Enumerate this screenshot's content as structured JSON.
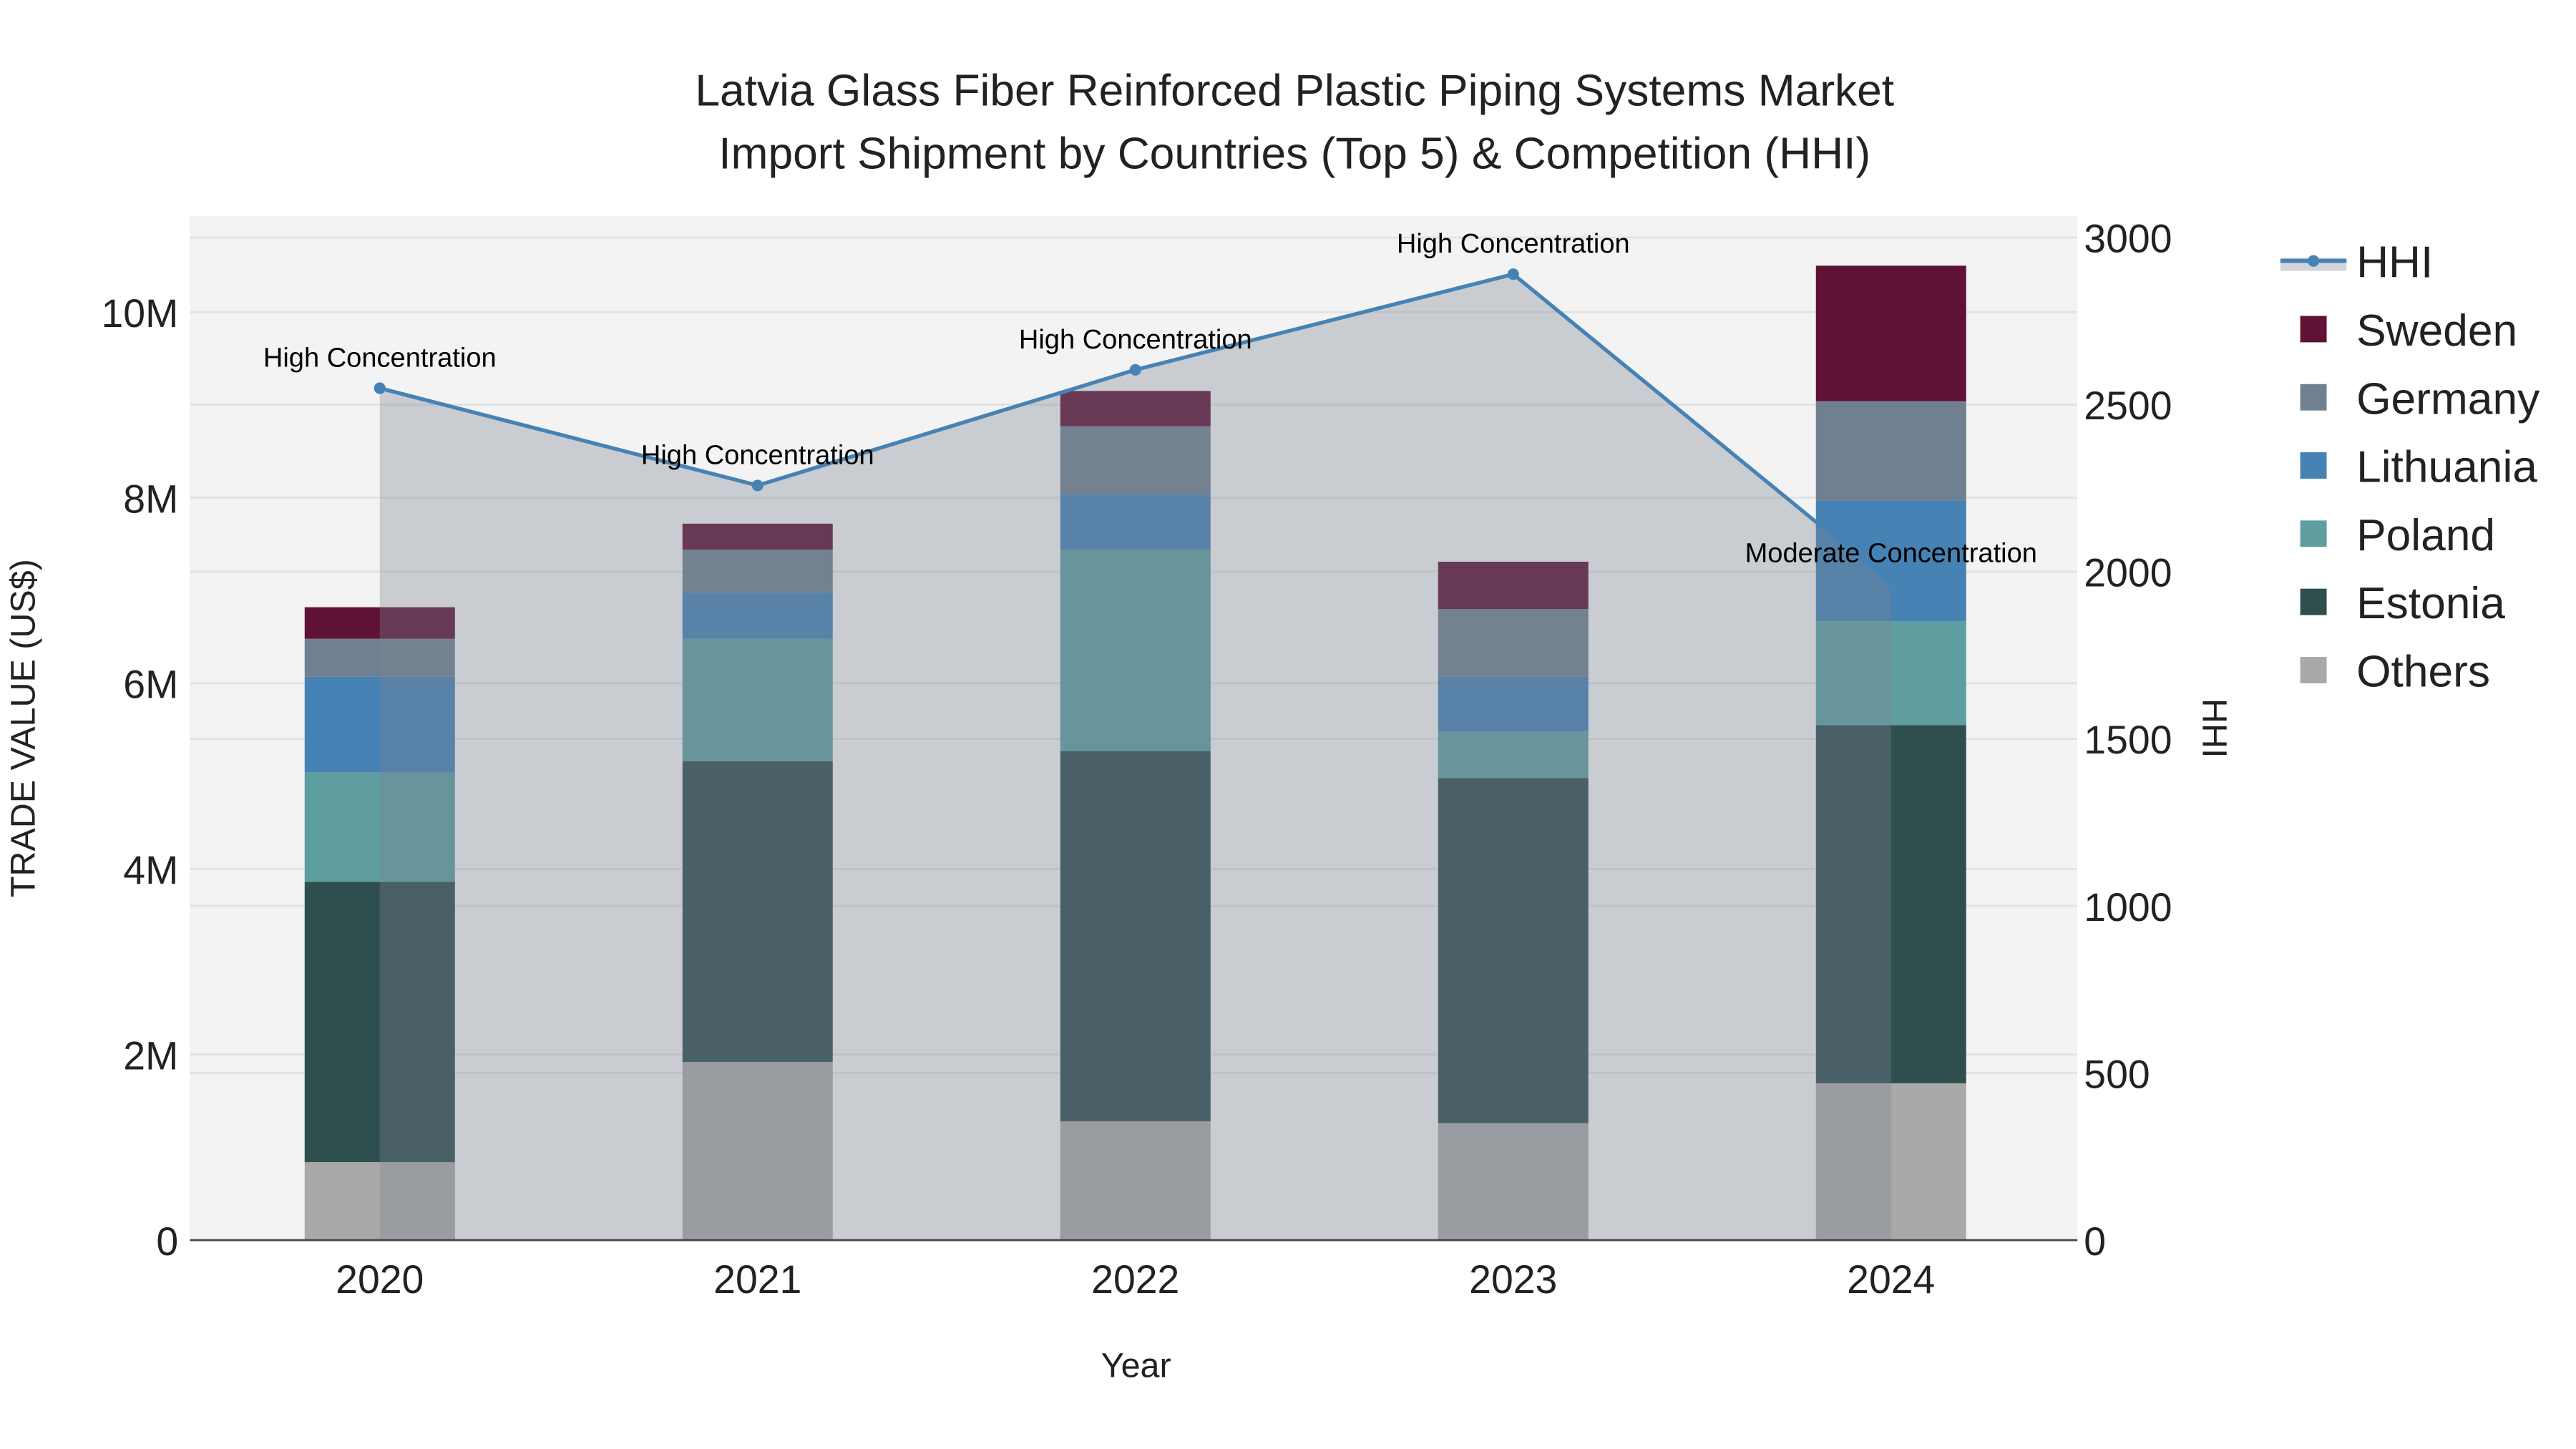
{
  "chart_data": {
    "type": "bar",
    "barmode": "stacked",
    "title": [
      "Latvia Glass Fiber Reinforced Plastic Piping Systems Market",
      "Import Shipment by Countries (Top 5) & Competition (HHI)"
    ],
    "xlabel": "Year",
    "ylabel": "TRADE VALUE (US$)",
    "y2label": "HHI",
    "categories": [
      "2020",
      "2021",
      "2022",
      "2023",
      "2024"
    ],
    "ylim": [
      0,
      11000000
    ],
    "y2lim": [
      0,
      3060
    ],
    "yticks": [
      {
        "v": 0,
        "label": "0"
      },
      {
        "v": 2000000,
        "label": "2M"
      },
      {
        "v": 4000000,
        "label": "4M"
      },
      {
        "v": 6000000,
        "label": "6M"
      },
      {
        "v": 8000000,
        "label": "8M"
      },
      {
        "v": 10000000,
        "label": "10M"
      }
    ],
    "y2ticks": [
      {
        "v": 0,
        "label": "0"
      },
      {
        "v": 500,
        "label": "500"
      },
      {
        "v": 1000,
        "label": "1000"
      },
      {
        "v": 1500,
        "label": "1500"
      },
      {
        "v": 2000,
        "label": "2000"
      },
      {
        "v": 2500,
        "label": "2500"
      },
      {
        "v": 3000,
        "label": "3000"
      }
    ],
    "grid": true,
    "legend_position": "right",
    "series": [
      {
        "name": "Others",
        "color": "#a9a9a9",
        "values": [
          840000,
          1920000,
          1280000,
          1260000,
          1690000
        ]
      },
      {
        "name": "Estonia",
        "color": "#2f4f4f",
        "values": [
          3020000,
          3240000,
          3990000,
          3720000,
          3860000
        ]
      },
      {
        "name": "Poland",
        "color": "#5f9ea0",
        "values": [
          1180000,
          1320000,
          2170000,
          500000,
          1120000
        ]
      },
      {
        "name": "Lithuania",
        "color": "#4682b4",
        "values": [
          1030000,
          500000,
          600000,
          590000,
          1300000
        ]
      },
      {
        "name": "Germany",
        "color": "#708090",
        "values": [
          410000,
          460000,
          730000,
          730000,
          1070000
        ]
      },
      {
        "name": "Sweden",
        "color": "#5f1234",
        "values": [
          340000,
          280000,
          380000,
          510000,
          1460000
        ]
      }
    ],
    "hhi": {
      "name": "HHI",
      "color": "#4682b4",
      "values": [
        2549,
        2258,
        2604,
        2890,
        1965
      ],
      "annotations": [
        "High Concentration",
        "High Concentration",
        "High Concentration",
        "High Concentration",
        "Moderate Concentration"
      ]
    },
    "legend_order": [
      "HHI",
      "Sweden",
      "Germany",
      "Lithuania",
      "Poland",
      "Estonia",
      "Others"
    ]
  }
}
